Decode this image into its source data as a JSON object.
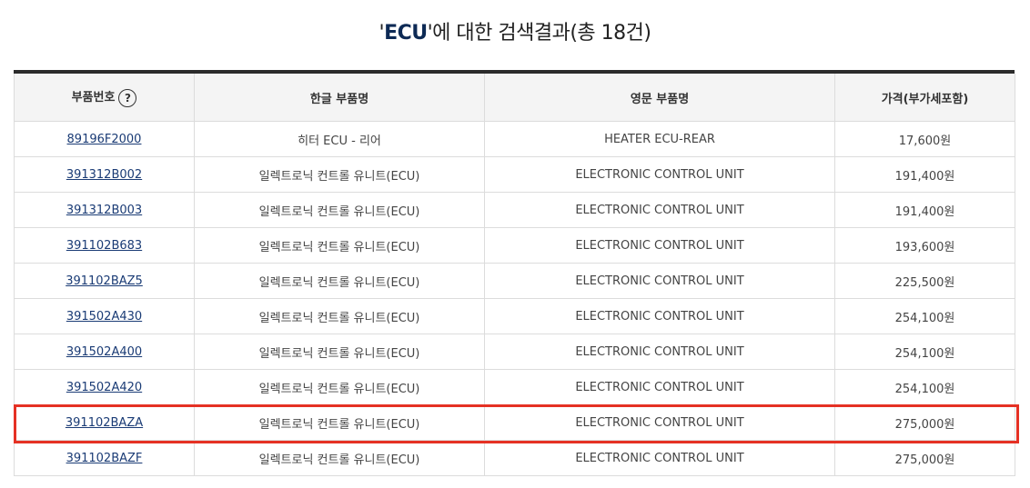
{
  "search": {
    "prefix": "'",
    "keyword": "ECU",
    "suffix": "'에 대한 검색결과(총 18건)"
  },
  "table": {
    "headers": [
      "부품번호",
      "한글 부품명",
      "영문 부품명",
      "가격(부가세포함)"
    ],
    "help_icon_label": "?",
    "rows": [
      {
        "part_no": "89196F2000",
        "name_ko": "히터 ECU - 리어",
        "name_en": "HEATER ECU-REAR",
        "price": "17,600원"
      },
      {
        "part_no": "391312B002",
        "name_ko": "일렉트로닉 컨트롤 유니트(ECU)",
        "name_en": "ELECTRONIC CONTROL UNIT",
        "price": "191,400원"
      },
      {
        "part_no": "391312B003",
        "name_ko": "일렉트로닉 컨트롤 유니트(ECU)",
        "name_en": "ELECTRONIC CONTROL UNIT",
        "price": "191,400원"
      },
      {
        "part_no": "391102B683",
        "name_ko": "일렉트로닉 컨트롤 유니트(ECU)",
        "name_en": "ELECTRONIC CONTROL UNIT",
        "price": "193,600원"
      },
      {
        "part_no": "391102BAZ5",
        "name_ko": "일렉트로닉 컨트롤 유니트(ECU)",
        "name_en": "ELECTRONIC CONTROL UNIT",
        "price": "225,500원"
      },
      {
        "part_no": "391502A430",
        "name_ko": "일렉트로닉 컨트롤 유니트(ECU)",
        "name_en": "ELECTRONIC CONTROL UNIT",
        "price": "254,100원"
      },
      {
        "part_no": "391502A400",
        "name_ko": "일렉트로닉 컨트롤 유니트(ECU)",
        "name_en": "ELECTRONIC CONTROL UNIT",
        "price": "254,100원"
      },
      {
        "part_no": "391502A420",
        "name_ko": "일렉트로닉 컨트롤 유니트(ECU)",
        "name_en": "ELECTRONIC CONTROL UNIT",
        "price": "254,100원"
      },
      {
        "part_no": "391102BAZA",
        "name_ko": "일렉트로닉 컨트롤 유니트(ECU)",
        "name_en": "ELECTRONIC CONTROL UNIT",
        "price": "275,000원"
      },
      {
        "part_no": "391102BAZF",
        "name_ko": "일렉트로닉 컨트롤 유니트(ECU)",
        "name_en": "ELECTRONIC CONTROL UNIT",
        "price": "275,000원"
      }
    ]
  },
  "colors": {
    "highlight": "#e53124",
    "link": "#1a3b75",
    "keyword": "#0d2a55",
    "header_bg": "#f4f4f4"
  },
  "icons": {
    "help": "help-circle-icon"
  }
}
